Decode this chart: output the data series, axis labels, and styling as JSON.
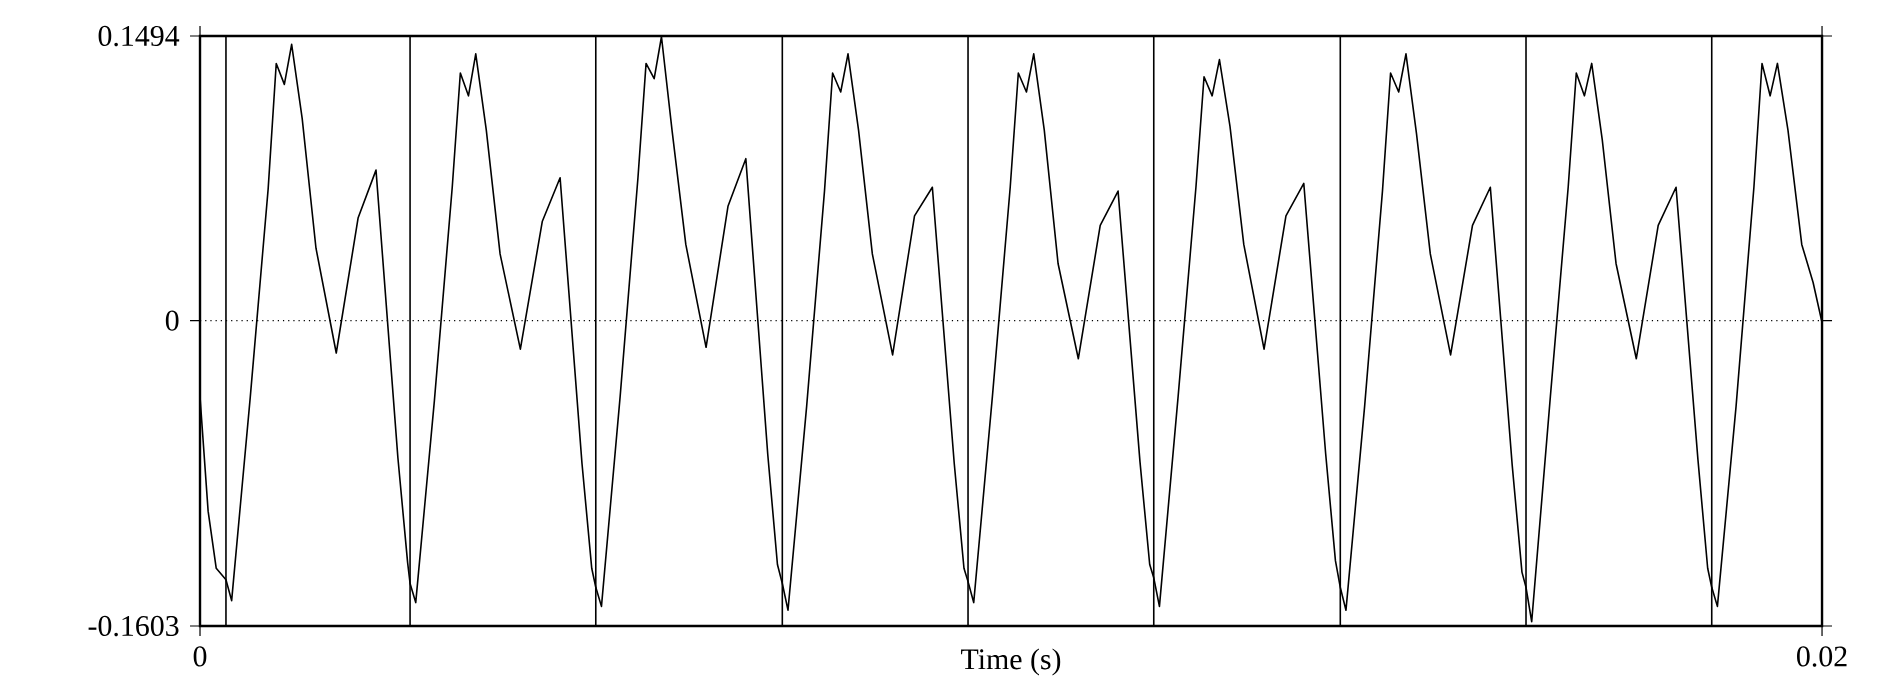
{
  "chart_data": {
    "type": "line",
    "xlabel": "Time (s)",
    "xlim": [
      0,
      0.02
    ],
    "ylim": [
      -0.1603,
      0.1494
    ],
    "xticks": [
      0,
      0.02
    ],
    "yticks": [
      -0.1603,
      0,
      0.1494
    ],
    "grid": false,
    "marker": "none",
    "line_style": "solid",
    "series": [
      {
        "color": "#000000",
        "x": [
          0,
          0.0001,
          0.0002,
          0.00032,
          0.00039,
          0.00062,
          0.00084,
          0.00094,
          0.00104,
          0.00113,
          0.00126,
          0.00143,
          0.00168,
          0.00195,
          0.00217,
          0.00244,
          0.00256,
          0.00259,
          0.00266,
          0.00289,
          0.00311,
          0.00321,
          0.00331,
          0.0034,
          0.00353,
          0.0037,
          0.00395,
          0.00422,
          0.00444,
          0.00471,
          0.00483,
          0.00488,
          0.00495,
          0.00518,
          0.0054,
          0.0055,
          0.0056,
          0.00569,
          0.00582,
          0.00599,
          0.00624,
          0.00651,
          0.00673,
          0.007,
          0.00712,
          0.00718,
          0.00725,
          0.00748,
          0.0077,
          0.0078,
          0.0079,
          0.00799,
          0.00812,
          0.00829,
          0.00854,
          0.00881,
          0.00903,
          0.0093,
          0.00942,
          0.00947,
          0.00954,
          0.00977,
          0.00999,
          0.01009,
          0.01019,
          0.01028,
          0.01041,
          0.01058,
          0.01083,
          0.0111,
          0.01132,
          0.01159,
          0.01171,
          0.01176,
          0.01183,
          0.01206,
          0.01228,
          0.01238,
          0.01248,
          0.01257,
          0.0127,
          0.01287,
          0.01312,
          0.01339,
          0.01361,
          0.01388,
          0.014,
          0.01406,
          0.01413,
          0.01436,
          0.01458,
          0.01468,
          0.01478,
          0.01487,
          0.015,
          0.01517,
          0.01542,
          0.01569,
          0.01591,
          0.01618,
          0.0163,
          0.01635,
          0.01642,
          0.01665,
          0.01687,
          0.01697,
          0.01707,
          0.01716,
          0.01729,
          0.01746,
          0.01771,
          0.01798,
          0.0182,
          0.01847,
          0.01859,
          0.01864,
          0.01871,
          0.01894,
          0.01916,
          0.01926,
          0.01936,
          0.01945,
          0.01958,
          0.01975,
          0.01989,
          0.02
        ],
        "values": [
          -0.04,
          -0.1,
          -0.13,
          -0.136,
          -0.147,
          -0.04,
          0.069,
          0.135,
          0.124,
          0.145,
          0.106,
          0.038,
          -0.017,
          0.054,
          0.079,
          -0.072,
          -0.127,
          -0.138,
          -0.148,
          -0.042,
          0.07,
          0.13,
          0.118,
          0.14,
          0.1,
          0.035,
          -0.015,
          0.052,
          0.075,
          -0.075,
          -0.13,
          -0.14,
          -0.15,
          -0.04,
          0.075,
          0.135,
          0.127,
          0.149,
          0.1,
          0.04,
          -0.014,
          0.06,
          0.085,
          -0.07,
          -0.128,
          -0.138,
          -0.152,
          -0.045,
          0.068,
          0.13,
          0.12,
          0.14,
          0.1,
          0.035,
          -0.018,
          0.055,
          0.07,
          -0.075,
          -0.13,
          -0.137,
          -0.148,
          -0.04,
          0.07,
          0.13,
          0.12,
          0.14,
          0.1,
          0.03,
          -0.02,
          0.05,
          0.068,
          -0.074,
          -0.128,
          -0.135,
          -0.15,
          -0.04,
          0.07,
          0.128,
          0.118,
          0.137,
          0.102,
          0.04,
          -0.015,
          0.055,
          0.072,
          -0.07,
          -0.126,
          -0.14,
          -0.152,
          -0.045,
          0.068,
          0.13,
          0.12,
          0.14,
          0.098,
          0.035,
          -0.018,
          0.05,
          0.07,
          -0.076,
          -0.132,
          -0.14,
          -0.158,
          -0.04,
          0.07,
          0.13,
          0.118,
          0.135,
          0.095,
          0.03,
          -0.02,
          0.05,
          0.07,
          -0.073,
          -0.13,
          -0.14,
          -0.15,
          -0.045,
          0.07,
          0.135,
          0.118,
          0.135,
          0.1,
          0.04,
          0.02,
          -0.001
        ]
      }
    ],
    "ref_lines": [
      {
        "axis": "y",
        "value": 0,
        "line_style": "dotted"
      },
      {
        "axis": "x",
        "value": 0.00032
      },
      {
        "axis": "x",
        "value": 0.00259
      },
      {
        "axis": "x",
        "value": 0.00488
      },
      {
        "axis": "x",
        "value": 0.00718
      },
      {
        "axis": "x",
        "value": 0.00947
      },
      {
        "axis": "x",
        "value": 0.01176
      },
      {
        "axis": "x",
        "value": 0.01406
      },
      {
        "axis": "x",
        "value": 0.01635
      },
      {
        "axis": "x",
        "value": 0.01864
      }
    ]
  }
}
